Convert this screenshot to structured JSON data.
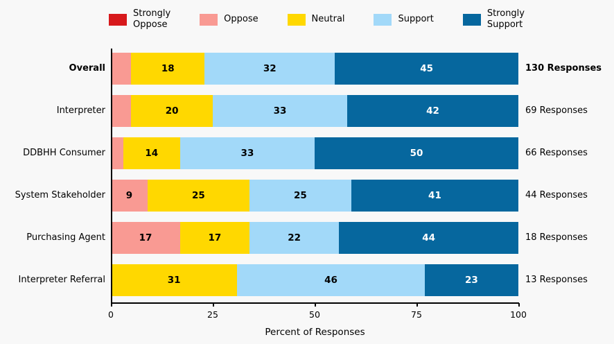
{
  "chart_data": {
    "type": "bar",
    "orientation": "horizontal-stacked",
    "xlabel": "Percent of Responses",
    "xlim": [
      0,
      100
    ],
    "xticks": [
      0,
      25,
      50,
      75,
      100
    ],
    "grid": false,
    "legend_position": "top",
    "label_min": 8,
    "series": [
      {
        "name": "Strongly Oppose",
        "label": "Strongly\nOppose",
        "color": "#d7191c",
        "text_color": "#000000"
      },
      {
        "name": "Oppose",
        "label": "Oppose",
        "color": "#f99a93",
        "text_color": "#000000"
      },
      {
        "name": "Neutral",
        "label": "Neutral",
        "color": "#ffd800",
        "text_color": "#000000"
      },
      {
        "name": "Support",
        "label": "Support",
        "color": "#a2d9f9",
        "text_color": "#000000"
      },
      {
        "name": "Strongly Support",
        "label": "Strongly\nSupport",
        "color": "#06679e",
        "text_color": "#ffffff"
      }
    ],
    "rows": [
      {
        "category": "Overall",
        "bold": true,
        "responses": "130 Responses",
        "values": [
          0,
          5,
          18,
          32,
          45
        ]
      },
      {
        "category": "Interpreter",
        "bold": false,
        "responses": "69 Responses",
        "values": [
          0,
          5,
          20,
          33,
          42
        ]
      },
      {
        "category": "DDBHH Consumer",
        "bold": false,
        "responses": "66 Responses",
        "values": [
          0,
          3,
          14,
          33,
          50
        ]
      },
      {
        "category": "System Stakeholder",
        "bold": false,
        "responses": "44 Responses",
        "values": [
          0,
          9,
          25,
          25,
          41
        ]
      },
      {
        "category": "Purchasing Agent",
        "bold": false,
        "responses": "18 Responses",
        "values": [
          0,
          17,
          17,
          22,
          44
        ]
      },
      {
        "category": "Interpreter Referral",
        "bold": false,
        "responses": "13 Responses",
        "values": [
          0,
          0,
          31,
          46,
          23
        ]
      }
    ]
  }
}
